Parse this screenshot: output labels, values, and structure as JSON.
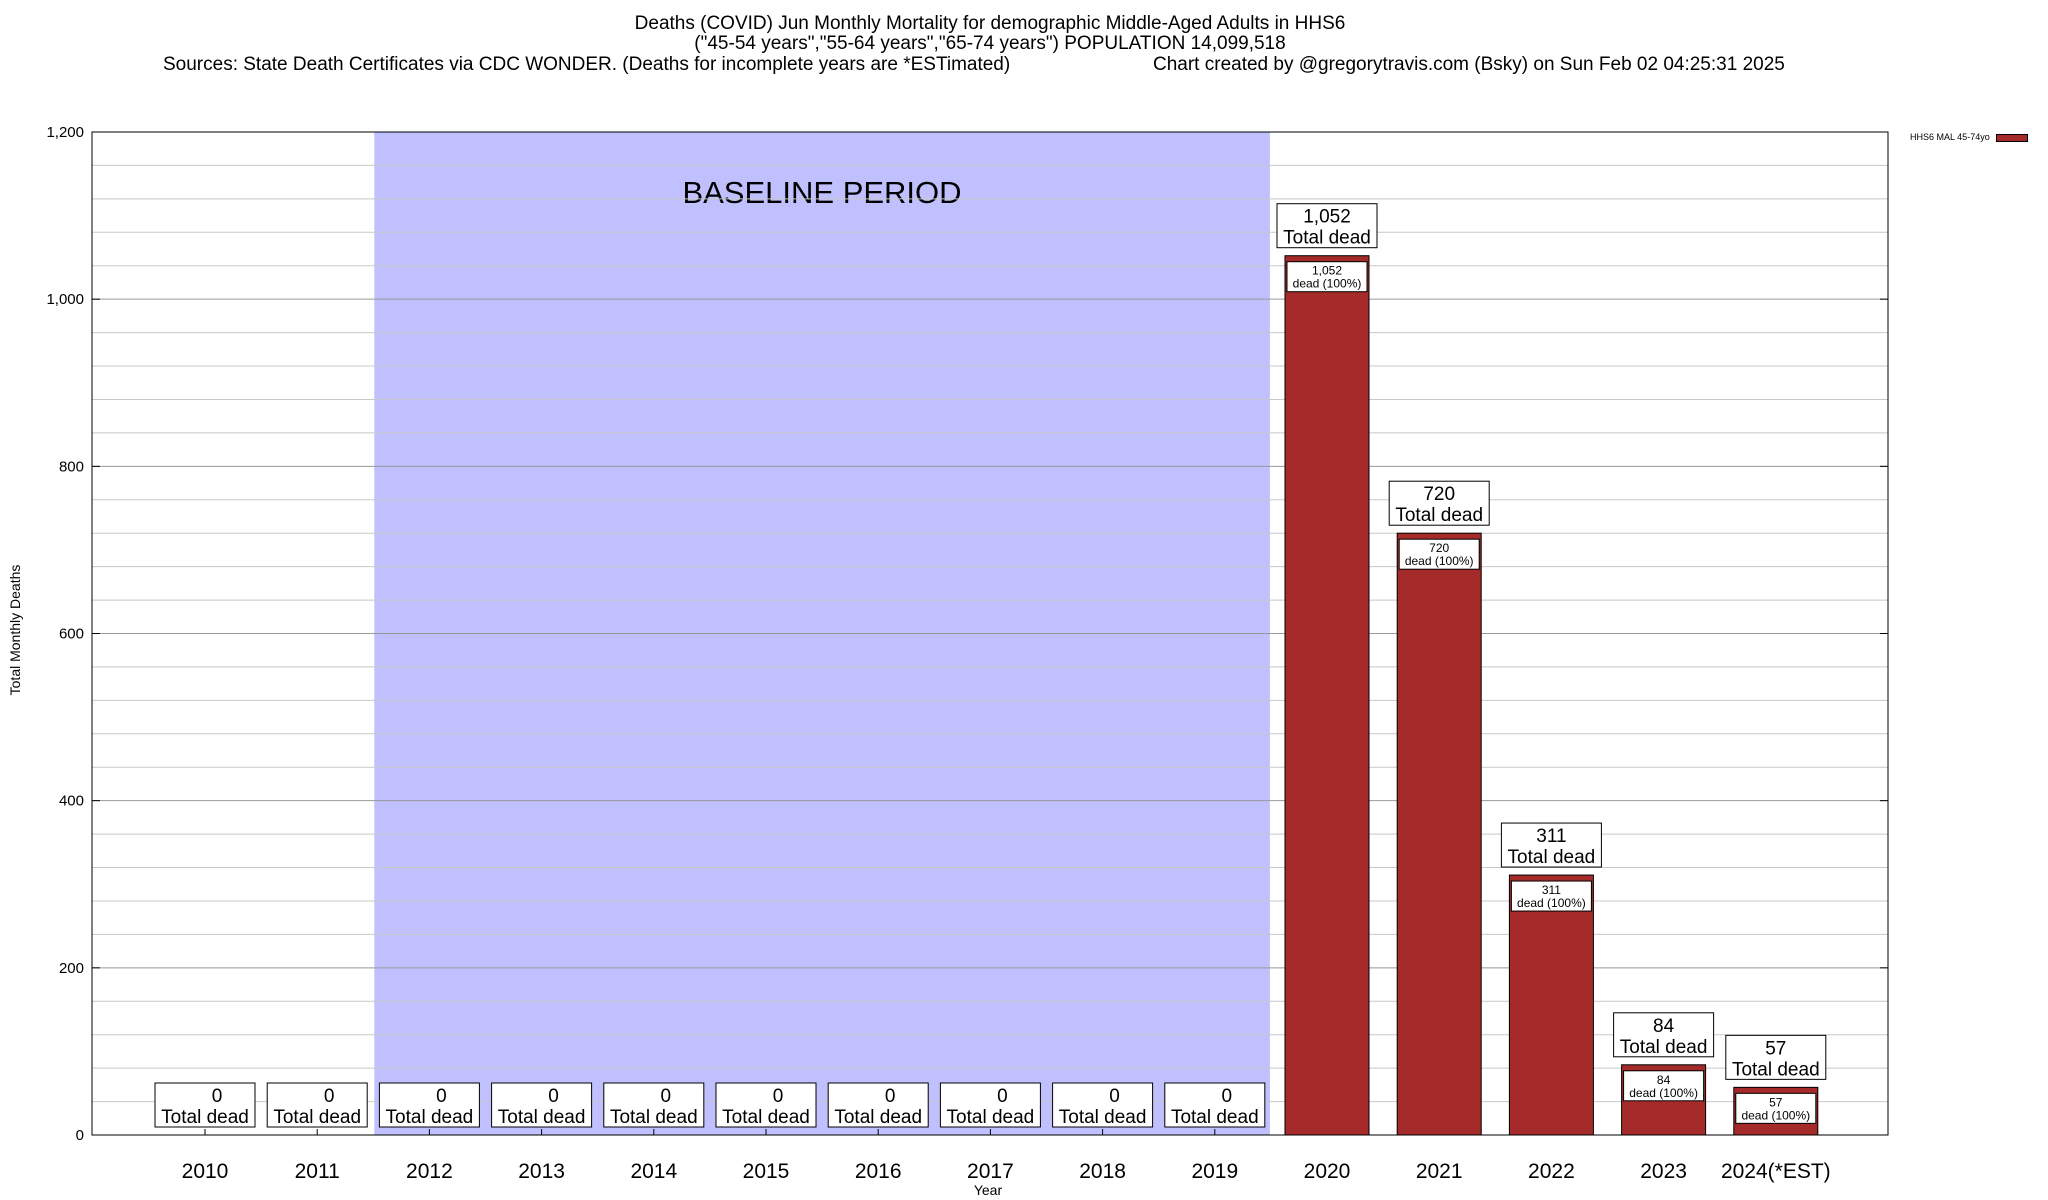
{
  "header": {
    "title_line1": "Deaths (COVID) Jun Monthly Mortality for demographic Middle-Aged Adults in HHS6",
    "title_line2": "(\"45-54 years\",\"55-64 years\",\"65-74 years\") POPULATION 14,099,518",
    "sources": "Sources: State Death Certificates via CDC WONDER. (Deaths for incomplete years are *ESTimated)",
    "credit": "Chart created by @gregorytravis.com (Bsky) on Sun Feb 02 04:25:31 2025"
  },
  "legend": {
    "label": "HHS6 MAL 45-74yo",
    "color": "#a52a2a"
  },
  "chart_data": {
    "type": "bar",
    "xlabel": "Year",
    "ylabel": "Total Monthly Deaths",
    "ylim": [
      0,
      1200
    ],
    "yticks": [
      0,
      200,
      400,
      600,
      800,
      1000,
      1200
    ],
    "ytick_labels": [
      "0",
      "200",
      "400",
      "600",
      "800",
      "1,000",
      "1,200"
    ],
    "minor_y_step": 40,
    "grid": true,
    "categories": [
      "2010",
      "2011",
      "2012",
      "2013",
      "2014",
      "2015",
      "2016",
      "2017",
      "2018",
      "2019",
      "2020",
      "2021",
      "2022",
      "2023",
      "2024(*EST)"
    ],
    "series": [
      {
        "name": "HHS6 MAL 45-74yo",
        "values": [
          0,
          0,
          0,
          0,
          0,
          0,
          0,
          0,
          0,
          0,
          1052,
          720,
          311,
          84,
          57
        ]
      }
    ],
    "value_labels": [
      "0",
      "0",
      "0",
      "0",
      "0",
      "0",
      "0",
      "0",
      "0",
      "0",
      "1,052",
      "720",
      "311",
      "84",
      "57"
    ],
    "total_suffix": "Total dead",
    "inner_labels": [
      "",
      "",
      "",
      "",
      "",
      "",
      "",
      "",
      "",
      "",
      "1,052\ndead (100%)",
      "720\ndead (100%)",
      "311\ndead (100%)",
      "84\ndead (100%)",
      "57\ndead (100%)"
    ],
    "baseline": {
      "label": "BASELINE PERIOD",
      "from": "2012",
      "to": "2019",
      "color": "#c0c0ff"
    },
    "bar_color": "#a52a2a",
    "bar_top_color": "#a52a2a"
  }
}
